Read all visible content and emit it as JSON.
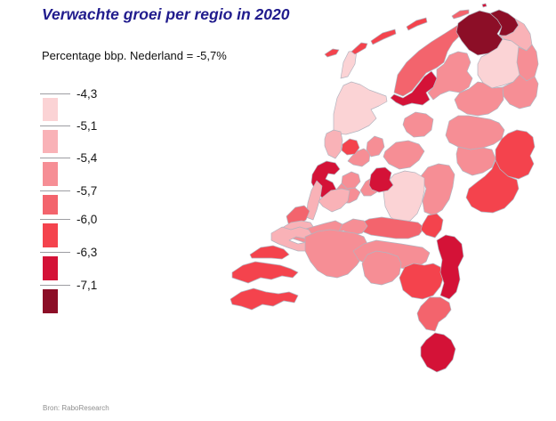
{
  "title": "Verwachte groei per regio in 2020",
  "subtitle": "Percentage bbp. Nederland = -5,7%",
  "source": "Bron: RaboResearch",
  "colors": {
    "title_accent": "#211c8d",
    "region_border": "#b3b4bf",
    "background": "#ffffff"
  },
  "chart_data": {
    "type": "choropleth",
    "title": "Verwachte groei per regio in 2020",
    "subtitle": "Percentage bbp. Nederland = -5,7%",
    "unit": "percentage bbp",
    "national_value": "-5,7%",
    "legend": {
      "position": "left",
      "tick_labels": [
        "-4,3",
        "-5,1",
        "-5,4",
        "-5,7",
        "-6,0",
        "-6,3",
        "-7,1"
      ],
      "bucket_colors": [
        "#fbd3d5",
        "#f9b2b7",
        "#f68e95",
        "#f3646d",
        "#f4434d",
        "#d41237",
        "#8c0e27"
      ],
      "note": "buckets run from -4,3 (lightest) to below -7,1 (darkest)"
    },
    "regions": [
      {
        "id": "texel",
        "bucket": 0
      },
      {
        "id": "noorderhaaks",
        "bucket": 4
      },
      {
        "id": "vlieland",
        "bucket": 4
      },
      {
        "id": "terschelling",
        "bucket": 4
      },
      {
        "id": "ameland",
        "bucket": 4
      },
      {
        "id": "schiermonnikoog",
        "bucket": 3
      },
      {
        "id": "rottum",
        "bucket": 5
      },
      {
        "id": "noord-friesland",
        "bucket": 3
      },
      {
        "id": "zuidwest-friesland",
        "bucket": 5
      },
      {
        "id": "zuidoost-friesland",
        "bucket": 2
      },
      {
        "id": "groningen-west",
        "bucket": 6
      },
      {
        "id": "groningen-delfzijl",
        "bucket": 6
      },
      {
        "id": "oost-groningen",
        "bucket": 1
      },
      {
        "id": "groningen-oost-strip",
        "bucket": 2
      },
      {
        "id": "noord-drenthe",
        "bucket": 0
      },
      {
        "id": "zuidoost-drenthe",
        "bucket": 2
      },
      {
        "id": "zuidwest-drenthe",
        "bucket": 2
      },
      {
        "id": "noord-overijssel",
        "bucket": 2
      },
      {
        "id": "twente",
        "bucket": 4
      },
      {
        "id": "salland",
        "bucket": 2
      },
      {
        "id": "achterhoek",
        "bucket": 4
      },
      {
        "id": "noordoostpolder",
        "bucket": 2
      },
      {
        "id": "flevopolder",
        "bucket": 2
      },
      {
        "id": "veluwe",
        "bucket": 2
      },
      {
        "id": "gelderse-vallei",
        "bucket": 0
      },
      {
        "id": "betuwe",
        "bucket": 3
      },
      {
        "id": "arnhem-nijmegen",
        "bucket": 4
      },
      {
        "id": "kop-noord-holland",
        "bucket": 0
      },
      {
        "id": "alkmaar-coast",
        "bucket": 1
      },
      {
        "id": "zaanstreek",
        "bucket": 2
      },
      {
        "id": "waterland",
        "bucket": 2
      },
      {
        "id": "ijmond",
        "bucket": 4
      },
      {
        "id": "amsterdam",
        "bucket": 5
      },
      {
        "id": "gooi",
        "bucket": 2
      },
      {
        "id": "eemland",
        "bucket": 2
      },
      {
        "id": "utrecht",
        "bucket": 5
      },
      {
        "id": "utrecht-west",
        "bucket": 2
      },
      {
        "id": "bollenstreek",
        "bucket": 1
      },
      {
        "id": "oost-zuid-holland",
        "bucket": 1
      },
      {
        "id": "den-haag",
        "bucket": 3
      },
      {
        "id": "westland",
        "bucket": 1
      },
      {
        "id": "rijnmond",
        "bucket": 2
      },
      {
        "id": "drechtsteden",
        "bucket": 2
      },
      {
        "id": "voorne-hoeksche",
        "bucket": 1
      },
      {
        "id": "goeree",
        "bucket": 4
      },
      {
        "id": "schouwen-tholen",
        "bucket": 4
      },
      {
        "id": "walcheren-beveland",
        "bucket": 4
      },
      {
        "id": "west-brabant",
        "bucket": 2
      },
      {
        "id": "noordoost-brabant",
        "bucket": 2
      },
      {
        "id": "midden-brabant",
        "bucket": 2
      },
      {
        "id": "zuidoost-brabant",
        "bucket": 4
      },
      {
        "id": "noord-limburg",
        "bucket": 5
      },
      {
        "id": "midden-limburg",
        "bucket": 3
      },
      {
        "id": "zuid-limburg",
        "bucket": 5
      }
    ]
  }
}
